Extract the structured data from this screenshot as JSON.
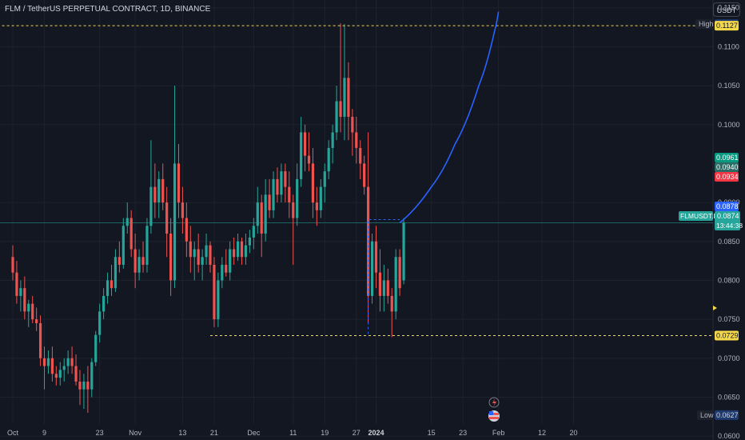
{
  "header": {
    "title": "FLM / TetherUS PERPETUAL CONTRACT, 1D, BINANCE",
    "currency": "USDT"
  },
  "colors": {
    "background": "#131722",
    "grid": "#1e222d",
    "up": "#26a69a",
    "down": "#ef5350",
    "projection": "#2962ff",
    "level_line": "#f5d84a",
    "price_line": "#26a69a"
  },
  "chart_data": {
    "type": "candlestick",
    "symbol_label": "FLMUSDT.P",
    "ylim": [
      0.0595,
      0.116
    ],
    "y_ticks": [
      "0.1150",
      "0.1100",
      "0.1050",
      "0.1000",
      "0.0900",
      "0.0850",
      "0.0800",
      "0.0750",
      "0.0700",
      "0.0650",
      "0.0600"
    ],
    "x_ticks": [
      {
        "label": "Oct",
        "day": 0
      },
      {
        "label": "9",
        "day": 8
      },
      {
        "label": "23",
        "day": 22
      },
      {
        "label": "Nov",
        "day": 31
      },
      {
        "label": "13",
        "day": 43
      },
      {
        "label": "21",
        "day": 51
      },
      {
        "label": "Dec",
        "day": 61
      },
      {
        "label": "11",
        "day": 71
      },
      {
        "label": "19",
        "day": 79
      },
      {
        "label": "27",
        "day": 87
      },
      {
        "label": "2024",
        "day": 92
      },
      {
        "label": "15",
        "day": 106
      },
      {
        "label": "23",
        "day": 114
      },
      {
        "label": "Feb",
        "day": 123
      },
      {
        "label": "12",
        "day": 134
      },
      {
        "label": "20",
        "day": 142
      }
    ],
    "candles": [
      [
        0.083,
        0.0845,
        0.08,
        0.081
      ],
      [
        0.081,
        0.0825,
        0.077,
        0.078
      ],
      [
        0.078,
        0.08,
        0.076,
        0.079
      ],
      [
        0.079,
        0.0805,
        0.075,
        0.076
      ],
      [
        0.076,
        0.0775,
        0.074,
        0.077
      ],
      [
        0.077,
        0.078,
        0.0745,
        0.075
      ],
      [
        0.075,
        0.0765,
        0.0735,
        0.0745
      ],
      [
        0.0745,
        0.0755,
        0.069,
        0.07
      ],
      [
        0.07,
        0.0715,
        0.066,
        0.069
      ],
      [
        0.069,
        0.071,
        0.068,
        0.07
      ],
      [
        0.07,
        0.0715,
        0.067,
        0.068
      ],
      [
        0.068,
        0.069,
        0.0665,
        0.0675
      ],
      [
        0.0675,
        0.0695,
        0.0665,
        0.0685
      ],
      [
        0.0685,
        0.07,
        0.067,
        0.069
      ],
      [
        0.069,
        0.071,
        0.068,
        0.07
      ],
      [
        0.07,
        0.0715,
        0.068,
        0.069
      ],
      [
        0.069,
        0.0705,
        0.0665,
        0.067
      ],
      [
        0.067,
        0.0685,
        0.064,
        0.066
      ],
      [
        0.066,
        0.068,
        0.0635,
        0.067
      ],
      [
        0.067,
        0.069,
        0.063,
        0.066
      ],
      [
        0.066,
        0.07,
        0.065,
        0.0695
      ],
      [
        0.0695,
        0.0735,
        0.069,
        0.073
      ],
      [
        0.073,
        0.077,
        0.072,
        0.076
      ],
      [
        0.076,
        0.079,
        0.075,
        0.078
      ],
      [
        0.078,
        0.081,
        0.077,
        0.08
      ],
      [
        0.08,
        0.082,
        0.078,
        0.079
      ],
      [
        0.079,
        0.084,
        0.0785,
        0.083
      ],
      [
        0.083,
        0.085,
        0.081,
        0.082
      ],
      [
        0.082,
        0.088,
        0.0815,
        0.087
      ],
      [
        0.087,
        0.09,
        0.086,
        0.088
      ],
      [
        0.088,
        0.089,
        0.083,
        0.084
      ],
      [
        0.084,
        0.086,
        0.079,
        0.081
      ],
      [
        0.081,
        0.084,
        0.08,
        0.083
      ],
      [
        0.083,
        0.085,
        0.081,
        0.082
      ],
      [
        0.082,
        0.088,
        0.081,
        0.087
      ],
      [
        0.087,
        0.098,
        0.086,
        0.092
      ],
      [
        0.092,
        0.095,
        0.088,
        0.09
      ],
      [
        0.09,
        0.094,
        0.088,
        0.093
      ],
      [
        0.093,
        0.095,
        0.089,
        0.09
      ],
      [
        0.09,
        0.092,
        0.083,
        0.086
      ],
      [
        0.086,
        0.088,
        0.078,
        0.08
      ],
      [
        0.08,
        0.105,
        0.079,
        0.095
      ],
      [
        0.095,
        0.0975,
        0.088,
        0.09
      ],
      [
        0.09,
        0.092,
        0.086,
        0.088
      ],
      [
        0.088,
        0.09,
        0.083,
        0.085
      ],
      [
        0.085,
        0.087,
        0.081,
        0.083
      ],
      [
        0.083,
        0.085,
        0.08,
        0.084
      ],
      [
        0.084,
        0.086,
        0.081,
        0.082
      ],
      [
        0.082,
        0.084,
        0.08,
        0.083
      ],
      [
        0.083,
        0.086,
        0.082,
        0.0845
      ],
      [
        0.0845,
        0.085,
        0.081,
        0.082
      ],
      [
        0.082,
        0.083,
        0.074,
        0.075
      ],
      [
        0.075,
        0.081,
        0.074,
        0.08
      ],
      [
        0.08,
        0.083,
        0.079,
        0.082
      ],
      [
        0.082,
        0.084,
        0.0805,
        0.081
      ],
      [
        0.081,
        0.085,
        0.08,
        0.084
      ],
      [
        0.084,
        0.0855,
        0.082,
        0.083
      ],
      [
        0.083,
        0.086,
        0.0825,
        0.085
      ],
      [
        0.085,
        0.0855,
        0.082,
        0.083
      ],
      [
        0.083,
        0.086,
        0.082,
        0.0845
      ],
      [
        0.0845,
        0.0865,
        0.0835,
        0.0855
      ],
      [
        0.0855,
        0.088,
        0.084,
        0.087
      ],
      [
        0.087,
        0.092,
        0.086,
        0.09
      ],
      [
        0.09,
        0.091,
        0.083,
        0.086
      ],
      [
        0.086,
        0.093,
        0.085,
        0.091
      ],
      [
        0.091,
        0.093,
        0.088,
        0.089
      ],
      [
        0.089,
        0.094,
        0.088,
        0.093
      ],
      [
        0.093,
        0.0945,
        0.09,
        0.091
      ],
      [
        0.091,
        0.095,
        0.09,
        0.094
      ],
      [
        0.094,
        0.095,
        0.09,
        0.092
      ],
      [
        0.092,
        0.094,
        0.088,
        0.09
      ],
      [
        0.09,
        0.091,
        0.082,
        0.088
      ],
      [
        0.088,
        0.095,
        0.087,
        0.093
      ],
      [
        0.093,
        0.101,
        0.092,
        0.099
      ],
      [
        0.099,
        0.1,
        0.094,
        0.096
      ],
      [
        0.096,
        0.099,
        0.094,
        0.095
      ],
      [
        0.095,
        0.097,
        0.088,
        0.09
      ],
      [
        0.09,
        0.092,
        0.087,
        0.089
      ],
      [
        0.089,
        0.093,
        0.088,
        0.092
      ],
      [
        0.092,
        0.095,
        0.09,
        0.094
      ],
      [
        0.094,
        0.098,
        0.093,
        0.097
      ],
      [
        0.097,
        0.1,
        0.095,
        0.099
      ],
      [
        0.099,
        0.105,
        0.098,
        0.103
      ],
      [
        0.103,
        0.113,
        0.099,
        0.101
      ],
      [
        0.101,
        0.1129,
        0.098,
        0.106
      ],
      [
        0.106,
        0.108,
        0.098,
        0.101
      ],
      [
        0.101,
        0.102,
        0.096,
        0.099
      ],
      [
        0.099,
        0.101,
        0.095,
        0.097
      ],
      [
        0.097,
        0.098,
        0.093,
        0.095
      ],
      [
        0.095,
        0.096,
        0.091,
        0.092
      ],
      [
        0.092,
        0.099,
        0.0745,
        0.078
      ],
      [
        0.078,
        0.086,
        0.077,
        0.085
      ],
      [
        0.085,
        0.087,
        0.079,
        0.081
      ],
      [
        0.081,
        0.084,
        0.076,
        0.078
      ],
      [
        0.078,
        0.082,
        0.076,
        0.08
      ],
      [
        0.08,
        0.0815,
        0.077,
        0.078
      ],
      [
        0.078,
        0.079,
        0.0727,
        0.076
      ],
      [
        0.076,
        0.084,
        0.075,
        0.083
      ],
      [
        0.083,
        0.084,
        0.078,
        0.079
      ],
      [
        0.08,
        0.088,
        0.0795,
        0.0874
      ]
    ],
    "projection": [
      {
        "day": 98,
        "value": 0.0874
      },
      {
        "day": 106,
        "value": 0.092
      },
      {
        "day": 112,
        "value": 0.0975
      },
      {
        "day": 118,
        "value": 0.105
      },
      {
        "day": 122,
        "value": 0.112
      },
      {
        "day": 123,
        "value": 0.1145
      }
    ],
    "high": {
      "label": "High",
      "value": "0.1129"
    },
    "low": {
      "label": "Low",
      "value": "0.0627"
    },
    "level_upper": {
      "value": "0.1127",
      "day_start": -10
    },
    "level_lower": {
      "value": "0.0729",
      "day_start": 50
    },
    "current": {
      "value": "0.0874",
      "countdown": "13:44:38"
    },
    "markers": [
      {
        "value": "0.0961",
        "color": "#089981"
      },
      {
        "value": "0.0940",
        "color": "#2a6b66"
      },
      {
        "value": "0.0934",
        "color": "#f23645"
      },
      {
        "value": "0.0878",
        "color": "#2962ff"
      }
    ]
  }
}
